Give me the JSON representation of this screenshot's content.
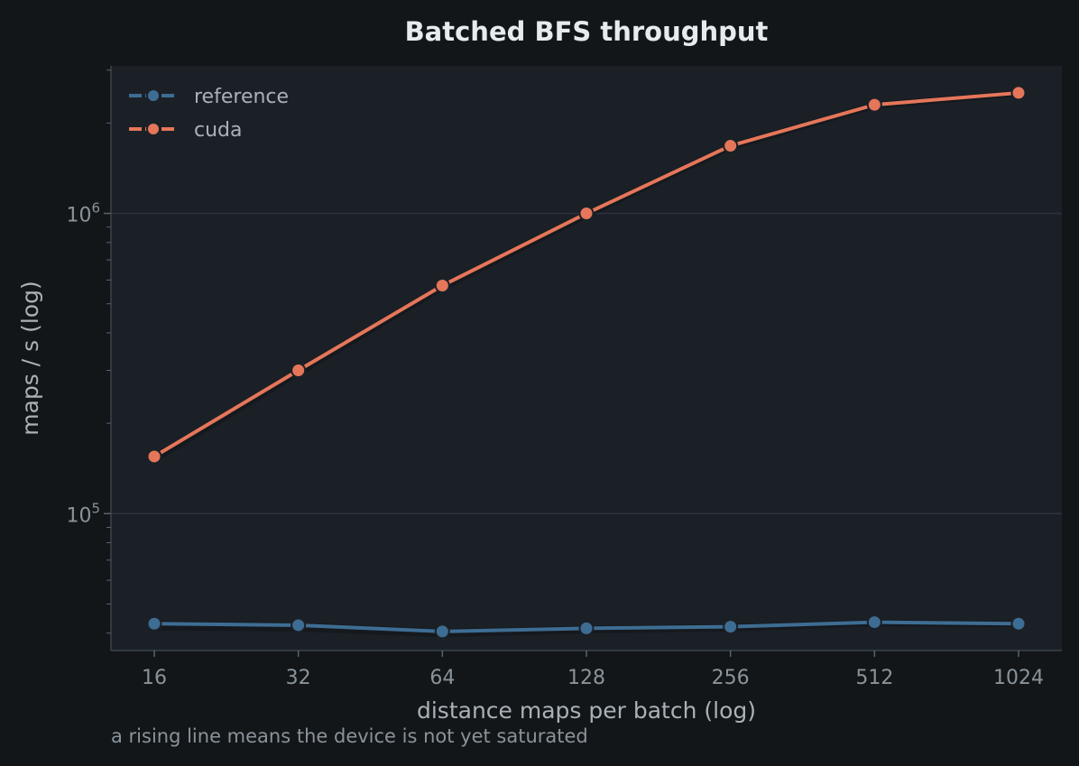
{
  "chart_data": {
    "type": "line",
    "title": "Batched BFS throughput",
    "xlabel": "distance maps per batch (log)",
    "ylabel": "maps / s (log)",
    "caption": "a rising line means the device is not yet saturated",
    "x_scale": "log2",
    "y_scale": "log10",
    "x": [
      16,
      32,
      64,
      128,
      256,
      512,
      1024
    ],
    "x_tick_labels": [
      "16",
      "32",
      "64",
      "128",
      "256",
      "512",
      "1024"
    ],
    "y_ticks": [
      {
        "value": 100000,
        "base": "10",
        "exp": "5"
      },
      {
        "value": 1000000,
        "base": "10",
        "exp": "6"
      }
    ],
    "ylim": [
      35000,
      3100000
    ],
    "grid": "horizontal major",
    "legend_position": "top-left",
    "series": [
      {
        "name": "reference",
        "color": "#3e6d93",
        "values": [
          43000,
          42500,
          40500,
          41500,
          42000,
          43500,
          43000
        ]
      },
      {
        "name": "cuda",
        "color": "#e5765a",
        "values": [
          155000,
          300000,
          575000,
          1000000,
          1680000,
          2300000,
          2520000
        ]
      }
    ]
  },
  "colors": {
    "page_background": "#121619",
    "plot_background": "#1b2027",
    "grid": "#2c333b"
  }
}
